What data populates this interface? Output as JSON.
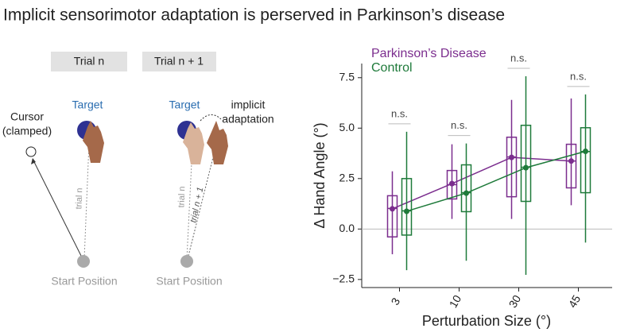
{
  "title": "Implicit sensorimotor adaptation is perserved in Parkinson’s disease",
  "diagram": {
    "trial_labels": [
      "Trial n",
      "Trial n + 1"
    ],
    "target_labels": [
      "Target",
      "Target"
    ],
    "cursor_label": [
      "Cursor",
      "(clamped)"
    ],
    "adaptation_label": [
      "implicit",
      "adaptation"
    ],
    "path_labels": [
      "trial n",
      "trial n",
      "trial n + 1"
    ],
    "start_labels": [
      "Start Position",
      "Start Position"
    ]
  },
  "chart_data": {
    "type": "box",
    "ylabel": "Δ Hand Angle (°)",
    "xlabel": "Perturbation Size (°)",
    "categories": [
      "3",
      "10",
      "30",
      "45"
    ],
    "annotations": [
      "n.s.",
      "n.s.",
      "n.s.",
      "n.s."
    ],
    "ylim": [
      -2.9,
      8.2
    ],
    "yticks": [
      {
        "value": -2.5,
        "label": "−2.5"
      },
      {
        "value": 0,
        "label": "0.0"
      },
      {
        "value": 2.5,
        "label": "2.5"
      },
      {
        "value": 5,
        "label": "5.0"
      },
      {
        "value": 7.5,
        "label": "7.5"
      }
    ],
    "reference_line": 0,
    "series": [
      {
        "name": "Parkinson’s Disease",
        "color": "#7b2d8e",
        "boxes": [
          {
            "low": -1.25,
            "q1": -0.39,
            "median": 1.02,
            "q3": 1.65,
            "high": 2.86
          },
          {
            "low": 0.5,
            "q1": 1.49,
            "median": 2.2,
            "q3": 2.9,
            "high": 4.2
          },
          {
            "low": 0.5,
            "q1": 1.6,
            "median": 3.57,
            "q3": 4.55,
            "high": 6.4
          },
          {
            "low": 1.18,
            "q1": 2.04,
            "median": 3.37,
            "q3": 4.2,
            "high": 6.47
          }
        ],
        "means": [
          1.0,
          2.25,
          3.55,
          3.37
        ]
      },
      {
        "name": "Control",
        "color": "#1e7a3a",
        "boxes": [
          {
            "low": -2.04,
            "q1": -0.3,
            "median": 0.9,
            "q3": 2.5,
            "high": 4.82
          },
          {
            "low": -1.57,
            "q1": 0.86,
            "median": 1.8,
            "q3": 3.18,
            "high": 4.24
          },
          {
            "low": -2.27,
            "q1": 1.37,
            "median": 3.06,
            "q3": 5.14,
            "high": 7.57
          },
          {
            "low": -0.67,
            "q1": 1.8,
            "median": 3.84,
            "q3": 5.02,
            "high": 6.67
          }
        ],
        "means": [
          0.88,
          1.78,
          3.04,
          3.85
        ]
      }
    ]
  }
}
